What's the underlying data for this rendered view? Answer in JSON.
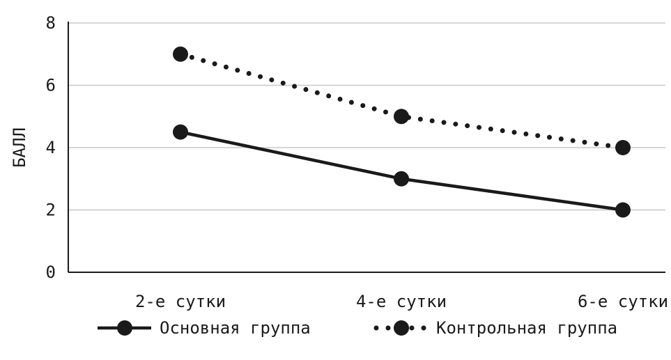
{
  "chart_data": {
    "type": "line",
    "title": "",
    "xlabel": "",
    "ylabel": "БАЛЛ",
    "categories": [
      "2-е сутки",
      "4-е сутки",
      "6-е сутки"
    ],
    "ylim": [
      0,
      8
    ],
    "yticks": [
      0,
      2,
      4,
      6,
      8
    ],
    "grid": true,
    "legend_position": "bottom",
    "series": [
      {
        "name": "Основная группа",
        "values": [
          4.5,
          3.0,
          2.0
        ],
        "style": "solid",
        "color": "#1a1a1a"
      },
      {
        "name": "Контрольная группа",
        "values": [
          7.0,
          5.0,
          4.0
        ],
        "style": "dotted",
        "color": "#1a1a1a"
      }
    ]
  }
}
